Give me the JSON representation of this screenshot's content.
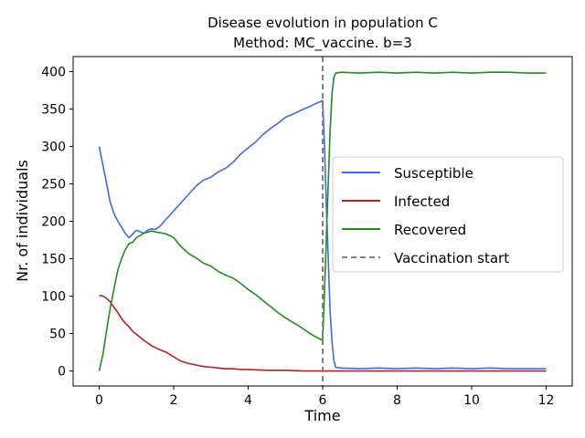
{
  "chart_data": {
    "type": "line",
    "title_line1": "Disease evolution in population C",
    "title_line2": "Method: MC_vaccine. b=3",
    "xlabel": "Time",
    "ylabel": "Nr. of individuals",
    "xlim": [
      -0.7,
      12.7
    ],
    "ylim": [
      -20,
      420
    ],
    "xticks": [
      0,
      2,
      4,
      6,
      8,
      10,
      12
    ],
    "yticks": [
      0,
      50,
      100,
      150,
      200,
      250,
      300,
      350,
      400
    ],
    "grid": false,
    "legend_position": "center-right",
    "vaccination_start": 6,
    "series": [
      {
        "name": "Susceptible",
        "color": "#4169e1",
        "x": [
          0,
          0.1,
          0.2,
          0.3,
          0.4,
          0.5,
          0.6,
          0.7,
          0.8,
          0.9,
          1.0,
          1.1,
          1.2,
          1.3,
          1.4,
          1.5,
          1.6,
          1.7,
          1.8,
          1.9,
          2.0,
          2.2,
          2.4,
          2.6,
          2.8,
          3.0,
          3.2,
          3.4,
          3.6,
          3.8,
          4.0,
          4.2,
          4.4,
          4.6,
          4.8,
          5.0,
          5.2,
          5.4,
          5.6,
          5.8,
          6.0,
          6.05,
          6.1,
          6.15,
          6.2,
          6.25,
          6.3,
          6.35,
          6.5,
          7.0,
          7.5,
          8.0,
          8.5,
          9.0,
          9.5,
          10.0,
          10.5,
          11.0,
          11.5,
          12.0
        ],
        "values": [
          300,
          275,
          250,
          225,
          210,
          200,
          192,
          184,
          178,
          183,
          188,
          186,
          184,
          188,
          190,
          189,
          192,
          197,
          203,
          208,
          214,
          225,
          236,
          247,
          255,
          259,
          266,
          271,
          279,
          290,
          298,
          306,
          316,
          324,
          331,
          339,
          343,
          348,
          352,
          357,
          361,
          300,
          220,
          150,
          80,
          40,
          15,
          5,
          4,
          3,
          4,
          3,
          4,
          3,
          4,
          3,
          4,
          3,
          3,
          3
        ]
      },
      {
        "name": "Infected",
        "color": "#b22222",
        "x": [
          0,
          0.1,
          0.2,
          0.3,
          0.4,
          0.5,
          0.6,
          0.7,
          0.8,
          0.9,
          1.0,
          1.2,
          1.4,
          1.6,
          1.8,
          2.0,
          2.2,
          2.4,
          2.6,
          2.8,
          3.0,
          3.2,
          3.4,
          3.6,
          3.8,
          4.0,
          4.5,
          5.0,
          5.5,
          6.0,
          6.5,
          7.0,
          8.0,
          9.0,
          10.0,
          11.0,
          12.0
        ],
        "values": [
          101,
          100,
          97,
          92,
          85,
          78,
          70,
          64,
          59,
          53,
          49,
          41,
          34,
          29,
          25,
          19,
          13,
          10,
          8,
          6,
          5,
          4,
          3,
          3,
          2,
          2,
          1,
          1,
          0,
          0,
          0,
          0,
          0,
          0,
          0,
          0,
          0
        ]
      },
      {
        "name": "Recovered",
        "color": "#228b22",
        "x": [
          0,
          0.1,
          0.2,
          0.3,
          0.4,
          0.5,
          0.6,
          0.7,
          0.8,
          0.9,
          1.0,
          1.2,
          1.4,
          1.6,
          1.8,
          2.0,
          2.2,
          2.4,
          2.6,
          2.8,
          3.0,
          3.2,
          3.4,
          3.6,
          3.8,
          4.0,
          4.2,
          4.4,
          4.6,
          4.8,
          5.0,
          5.2,
          5.4,
          5.6,
          5.8,
          6.0,
          6.05,
          6.1,
          6.15,
          6.2,
          6.25,
          6.3,
          6.35,
          6.5,
          7.0,
          7.5,
          8.0,
          8.5,
          9.0,
          9.5,
          10.0,
          10.5,
          11.0,
          11.5,
          12.0
        ],
        "values": [
          0,
          22,
          55,
          85,
          110,
          135,
          150,
          162,
          170,
          172,
          178,
          184,
          187,
          185,
          183,
          178,
          166,
          157,
          151,
          144,
          140,
          133,
          128,
          124,
          117,
          109,
          102,
          94,
          86,
          78,
          71,
          65,
          59,
          52,
          46,
          41,
          105,
          180,
          250,
          320,
          370,
          392,
          398,
          399,
          398,
          399,
          398,
          399,
          398,
          399,
          398,
          399,
          399,
          398,
          398
        ]
      }
    ],
    "legend": [
      {
        "label": "Susceptible",
        "color": "#4169e1",
        "style": "solid"
      },
      {
        "label": "Infected",
        "color": "#b22222",
        "style": "solid"
      },
      {
        "label": "Recovered",
        "color": "#228b22",
        "style": "solid"
      },
      {
        "label": "Vaccination start",
        "color": "#808080",
        "style": "dashed"
      }
    ]
  }
}
